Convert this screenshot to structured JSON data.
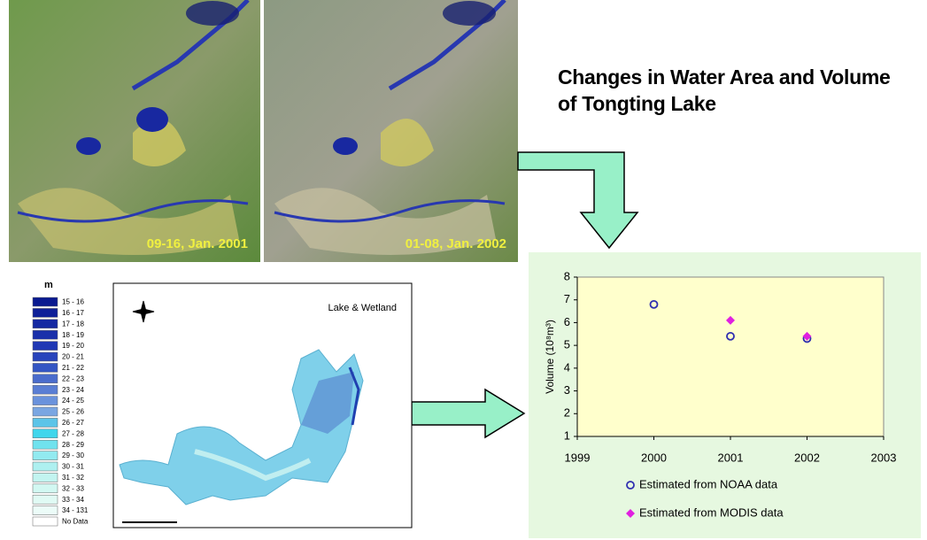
{
  "title": "Changes in Water Area and Volume of Tongting Lake",
  "images": [
    {
      "caption": "09-16, Jan. 2001"
    },
    {
      "caption": "01-08, Jan. 2002"
    }
  ],
  "map": {
    "title": "Lake & Wetland",
    "legend_unit": "m",
    "legend": [
      {
        "label": "15 - 16",
        "color": "#0a1a90"
      },
      {
        "label": "16 - 17",
        "color": "#0f2098"
      },
      {
        "label": "17 - 18",
        "color": "#1428a2"
      },
      {
        "label": "18 - 19",
        "color": "#1a30aa"
      },
      {
        "label": "19 - 20",
        "color": "#2038b4"
      },
      {
        "label": "20 - 21",
        "color": "#2844bc"
      },
      {
        "label": "21 - 22",
        "color": "#3456c4"
      },
      {
        "label": "22 - 23",
        "color": "#4a6ccc"
      },
      {
        "label": "23 - 24",
        "color": "#5a7ed4"
      },
      {
        "label": "24 - 25",
        "color": "#6a92dc"
      },
      {
        "label": "25 - 26",
        "color": "#7aa6e2"
      },
      {
        "label": "26 - 27",
        "color": "#5cc4e8"
      },
      {
        "label": "27 - 28",
        "color": "#40d6ec"
      },
      {
        "label": "28 - 29",
        "color": "#70e2ee"
      },
      {
        "label": "29 - 30",
        "color": "#92eaf0"
      },
      {
        "label": "30 - 31",
        "color": "#aef0f0"
      },
      {
        "label": "31 - 32",
        "color": "#c2f4f0"
      },
      {
        "label": "32 - 33",
        "color": "#d2f8f2"
      },
      {
        "label": "33 - 34",
        "color": "#e0faf4"
      },
      {
        "label": "34 - 131",
        "color": "#ecfcf8"
      },
      {
        "label": "No Data",
        "color": "#ffffff"
      }
    ]
  },
  "chart_data": {
    "type": "scatter",
    "ylabel": "Volume (10⁸m³)",
    "xlim": [
      1999,
      2003
    ],
    "ylim": [
      1,
      8
    ],
    "xticks": [
      1999,
      2000,
      2001,
      2002,
      2003
    ],
    "yticks": [
      1,
      2,
      3,
      4,
      5,
      6,
      7,
      8
    ],
    "series": [
      {
        "name": "Estimated from NOAA data",
        "color": "#3030b0",
        "marker": "open-circle",
        "x": [
          2000,
          2001,
          2002
        ],
        "values": [
          6.8,
          5.4,
          5.3
        ]
      },
      {
        "name": "Estimated from MODIS data",
        "color": "#e020e0",
        "marker": "diamond",
        "x": [
          2001,
          2002
        ],
        "values": [
          6.1,
          5.4
        ]
      }
    ]
  }
}
